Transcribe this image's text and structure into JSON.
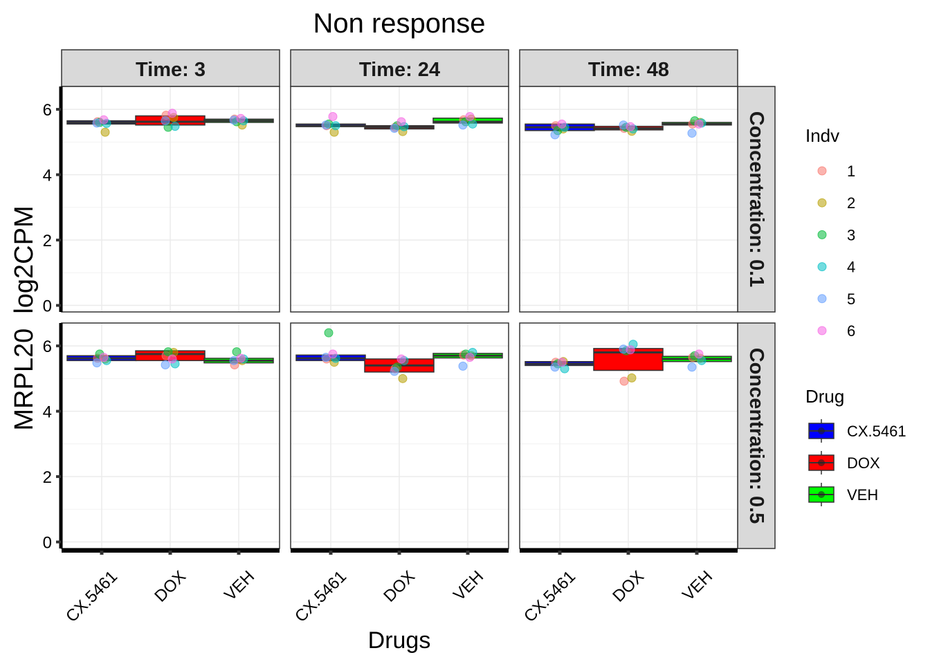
{
  "chart_data": {
    "type": "box",
    "title": "Non response",
    "xlabel": "Drugs",
    "ylabel": "MRPL20  log2CPM",
    "categories": [
      "CX.5461",
      "DOX",
      "VEH"
    ],
    "ylim": [
      -0.2,
      6.7
    ],
    "yticks": [
      0,
      2,
      4,
      6
    ],
    "col_facets": [
      "Time: 3",
      "Time: 24",
      "Time: 48"
    ],
    "row_facets": [
      "Concentration: 0.1",
      "Concentration: 0.5"
    ],
    "drug_colors": {
      "CX.5461": "#0000ff",
      "DOX": "#ff0000",
      "VEH": "#00ff00"
    },
    "legend_indv": {
      "title": "Indv",
      "items": [
        {
          "label": "1",
          "color": "#F8766D"
        },
        {
          "label": "2",
          "color": "#B79F00"
        },
        {
          "label": "3",
          "color": "#00BA38"
        },
        {
          "label": "4",
          "color": "#00BFC4"
        },
        {
          "label": "5",
          "color": "#619CFF"
        },
        {
          "label": "6",
          "color": "#F564E3"
        }
      ]
    },
    "legend_drug": {
      "title": "Drug",
      "items": [
        {
          "label": "CX.5461",
          "color": "#0000ff"
        },
        {
          "label": "DOX",
          "color": "#ff0000"
        },
        {
          "label": "VEH",
          "color": "#00ff00"
        }
      ]
    },
    "panels": [
      {
        "row": 0,
        "col": 0,
        "boxes": [
          {
            "drug": "CX.5461",
            "q1": 5.55,
            "median": 5.6,
            "q3": 5.65,
            "points": [
              5.62,
              5.3,
              5.6,
              5.57,
              5.58,
              5.68
            ]
          },
          {
            "drug": "DOX",
            "q1": 5.52,
            "median": 5.62,
            "q3": 5.8,
            "points": [
              5.82,
              5.75,
              5.45,
              5.48,
              5.65,
              5.88
            ]
          },
          {
            "drug": "VEH",
            "q1": 5.6,
            "median": 5.65,
            "q3": 5.7,
            "points": [
              5.7,
              5.52,
              5.62,
              5.65,
              5.67,
              5.72
            ]
          }
        ]
      },
      {
        "row": 0,
        "col": 1,
        "boxes": [
          {
            "drug": "CX.5461",
            "q1": 5.47,
            "median": 5.5,
            "q3": 5.55,
            "points": [
              5.5,
              5.3,
              5.55,
              5.5,
              5.52,
              5.78
            ]
          },
          {
            "drug": "DOX",
            "q1": 5.4,
            "median": 5.45,
            "q3": 5.5,
            "points": [
              5.45,
              5.32,
              5.5,
              5.47,
              5.42,
              5.62
            ]
          },
          {
            "drug": "VEH",
            "q1": 5.58,
            "median": 5.62,
            "q3": 5.73,
            "points": [
              5.68,
              5.7,
              5.62,
              5.55,
              5.52,
              5.78
            ]
          }
        ]
      },
      {
        "row": 0,
        "col": 2,
        "boxes": [
          {
            "drug": "CX.5461",
            "q1": 5.35,
            "median": 5.45,
            "q3": 5.55,
            "points": [
              5.5,
              5.4,
              5.35,
              5.45,
              5.22,
              5.55
            ]
          },
          {
            "drug": "DOX",
            "q1": 5.37,
            "median": 5.42,
            "q3": 5.48,
            "points": [
              5.42,
              5.33,
              5.45,
              5.4,
              5.52,
              5.47
            ]
          },
          {
            "drug": "VEH",
            "q1": 5.52,
            "median": 5.55,
            "q3": 5.6,
            "points": [
              5.55,
              5.6,
              5.65,
              5.58,
              5.27,
              5.55
            ]
          }
        ]
      },
      {
        "row": 1,
        "col": 0,
        "boxes": [
          {
            "drug": "CX.5461",
            "q1": 5.55,
            "median": 5.62,
            "q3": 5.7,
            "points": [
              5.62,
              5.6,
              5.75,
              5.55,
              5.48,
              5.65
            ]
          },
          {
            "drug": "DOX",
            "q1": 5.55,
            "median": 5.75,
            "q3": 5.85,
            "points": [
              5.7,
              5.8,
              5.82,
              5.45,
              5.42,
              5.6
            ]
          },
          {
            "drug": "VEH",
            "q1": 5.48,
            "median": 5.55,
            "q3": 5.62,
            "points": [
              5.42,
              5.55,
              5.82,
              5.6,
              5.55,
              5.62
            ]
          }
        ]
      },
      {
        "row": 1,
        "col": 1,
        "boxes": [
          {
            "drug": "CX.5461",
            "q1": 5.55,
            "median": 5.62,
            "q3": 5.72,
            "points": [
              5.6,
              5.5,
              6.4,
              5.62,
              5.65,
              5.75
            ]
          },
          {
            "drug": "DOX",
            "q1": 5.2,
            "median": 5.4,
            "q3": 5.6,
            "points": [
              5.3,
              5.0,
              5.35,
              5.55,
              5.22,
              5.6
            ]
          },
          {
            "drug": "VEH",
            "q1": 5.63,
            "median": 5.7,
            "q3": 5.77,
            "points": [
              5.72,
              5.7,
              5.75,
              5.8,
              5.38,
              5.65
            ]
          }
        ]
      },
      {
        "row": 1,
        "col": 2,
        "boxes": [
          {
            "drug": "CX.5461",
            "q1": 5.4,
            "median": 5.45,
            "q3": 5.52,
            "points": [
              5.5,
              5.52,
              5.45,
              5.3,
              5.35,
              5.5
            ]
          },
          {
            "drug": "DOX",
            "q1": 5.25,
            "median": 5.8,
            "q3": 5.92,
            "points": [
              4.92,
              5.02,
              5.85,
              6.05,
              5.9,
              5.88
            ]
          },
          {
            "drug": "VEH",
            "q1": 5.52,
            "median": 5.6,
            "q3": 5.68,
            "points": [
              5.65,
              5.62,
              5.7,
              5.55,
              5.35,
              5.75
            ]
          }
        ]
      }
    ]
  }
}
